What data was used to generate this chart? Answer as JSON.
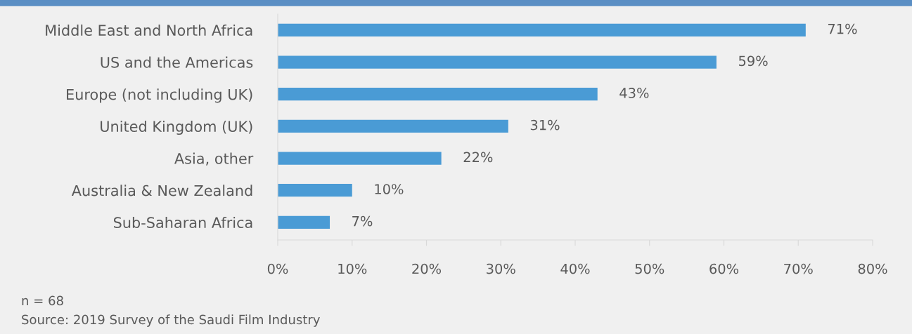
{
  "chart_data": {
    "type": "bar",
    "orientation": "horizontal",
    "categories": [
      "Middle East and North Africa",
      "US and the Americas",
      "Europe (not including UK)",
      "United Kingdom (UK)",
      "Asia, other",
      "Australia & New Zealand",
      "Sub-Saharan Africa"
    ],
    "values": [
      71,
      59,
      43,
      31,
      22,
      10,
      7
    ],
    "value_labels": [
      "71%",
      "59%",
      "43%",
      "31%",
      "22%",
      "10%",
      "7%"
    ],
    "color": "#4a9bd5",
    "xlim": [
      0,
      80
    ],
    "xticks": [
      {
        "value": 0,
        "label": "0%"
      },
      {
        "value": 10,
        "label": "10%"
      },
      {
        "value": 20,
        "label": "20%"
      },
      {
        "value": 30,
        "label": "30%"
      },
      {
        "value": 40,
        "label": "40%"
      },
      {
        "value": 50,
        "label": "50%"
      },
      {
        "value": 60,
        "label": "60%"
      },
      {
        "value": 70,
        "label": "70%"
      },
      {
        "value": 80,
        "label": "80%"
      }
    ],
    "grid": false,
    "legend": false,
    "annotations": [
      "n = 68",
      "Source: 2019 Survey of the Saudi Film Industry"
    ]
  }
}
